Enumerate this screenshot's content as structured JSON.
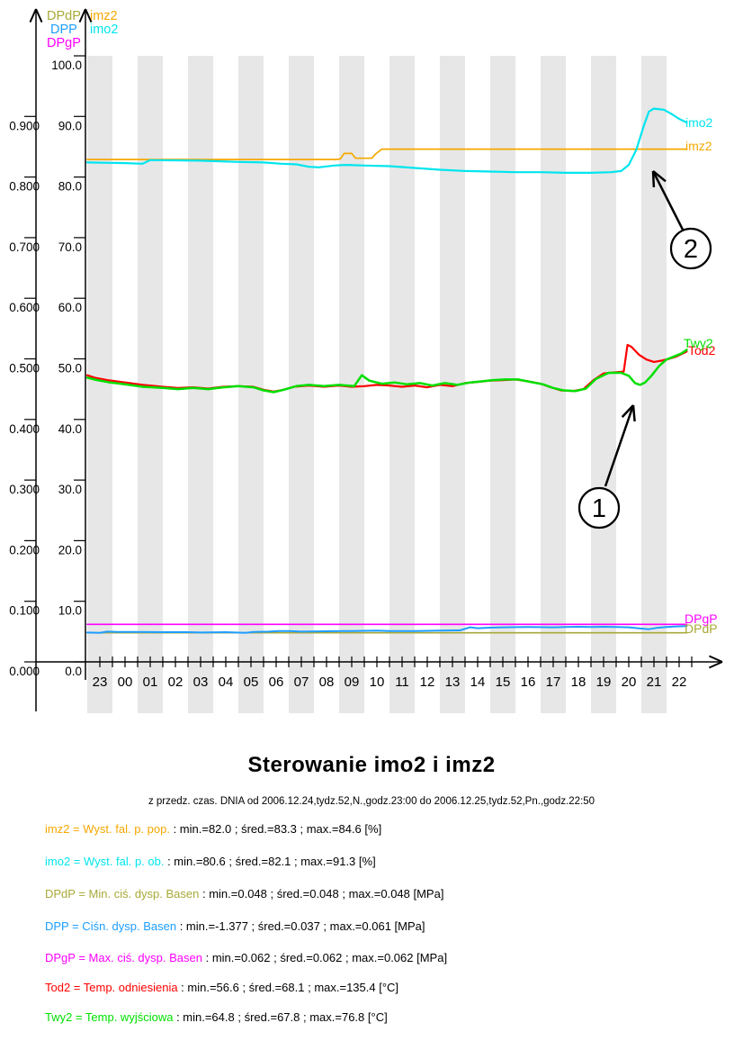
{
  "page": {
    "title": "Sterowanie imo2 i imz2",
    "subtitle": "z przedz. czas. DNIA od 2006.12.24,tydz.52,N.,godz.23:00 do 2006.12.25,tydz.52,Pn.,godz.22:50"
  },
  "chart_data": {
    "type": "line",
    "title": "Sterowanie imo2 i imz2",
    "subtitle": "z przedz. czas. DNIA od 2006.12.24,tydz.52,N.,godz.23:00 do 2006.12.25,tydz.52,Pn.,godz.22:50",
    "style": {
      "band_color": "#e7e7e7",
      "axis_color": "#000000",
      "background": "#ffffff"
    },
    "x_axis": {
      "unit": "hour",
      "labels": [
        "23",
        "00",
        "01",
        "02",
        "03",
        "04",
        "05",
        "06",
        "07",
        "08",
        "09",
        "10",
        "11",
        "12",
        "13",
        "14",
        "15",
        "16",
        "17",
        "18",
        "19",
        "20",
        "21",
        "22"
      ],
      "range_hours": [
        0,
        23.83
      ]
    },
    "y_axis_outer": {
      "range": [
        0,
        1
      ],
      "ticks": [
        [
          0,
          "0.000"
        ],
        [
          0.1,
          "0.100"
        ],
        [
          0.2,
          "0.200"
        ],
        [
          0.3,
          "0.300"
        ],
        [
          0.4,
          "0.400"
        ],
        [
          0.5,
          "0.500"
        ],
        [
          0.6,
          "0.600"
        ],
        [
          0.7,
          "0.700"
        ],
        [
          0.8,
          "0.800"
        ],
        [
          0.9,
          "0.900"
        ]
      ]
    },
    "y_axis_inner": {
      "range": [
        0,
        100
      ],
      "ticks": [
        [
          0,
          "0.0"
        ],
        [
          10,
          "10.0"
        ],
        [
          20,
          "20.0"
        ],
        [
          30,
          "30.0"
        ],
        [
          40,
          "40.0"
        ],
        [
          50,
          "50.0"
        ],
        [
          60,
          "60.0"
        ],
        [
          70,
          "70.0"
        ],
        [
          80,
          "80.0"
        ],
        [
          90,
          "90.0"
        ],
        [
          100,
          "100.0"
        ]
      ]
    },
    "axis_titles": {
      "left": [
        {
          "label": "DPdP",
          "color": "#a9a938"
        },
        {
          "label": "DPP",
          "color": "#1e9eff"
        },
        {
          "label": "DPgP",
          "color": "#ff00ff"
        }
      ],
      "right": [
        {
          "label": "imz2",
          "color": "#f5a800"
        },
        {
          "label": "imo2",
          "color": "#00e5ee"
        }
      ]
    },
    "series": [
      {
        "name": "DPgP",
        "color": "#ff00ff",
        "width": 1.6,
        "end_label": [
          761,
          692
        ],
        "points": [
          [
            0,
            6.2
          ],
          [
            23.8,
            6.2
          ]
        ]
      },
      {
        "name": "DPdP",
        "color": "#a9a938",
        "width": 1.6,
        "end_label": [
          761,
          703
        ],
        "points": [
          [
            0,
            4.8
          ],
          [
            23.8,
            4.8
          ]
        ]
      },
      {
        "name": "DPP",
        "color": "#1e9eff",
        "width": 2,
        "end_label": null,
        "points": [
          [
            0,
            4.85
          ],
          [
            0.5,
            4.8
          ],
          [
            0.8,
            5.0
          ],
          [
            1.2,
            4.95
          ],
          [
            2,
            4.95
          ],
          [
            3,
            4.9
          ],
          [
            4,
            4.9
          ],
          [
            4.5,
            4.85
          ],
          [
            5.5,
            4.9
          ],
          [
            6.3,
            4.8
          ],
          [
            6.6,
            4.95
          ],
          [
            7.2,
            5.0
          ],
          [
            7.6,
            5.1
          ],
          [
            8,
            5.1
          ],
          [
            8.5,
            5.0
          ],
          [
            9.5,
            5.05
          ],
          [
            10.5,
            5.1
          ],
          [
            11.5,
            5.15
          ],
          [
            12,
            5.1
          ],
          [
            13,
            5.1
          ],
          [
            14,
            5.15
          ],
          [
            14.8,
            5.2
          ],
          [
            15.2,
            5.7
          ],
          [
            15.5,
            5.55
          ],
          [
            16,
            5.65
          ],
          [
            16.5,
            5.7
          ],
          [
            17.5,
            5.75
          ],
          [
            18.5,
            5.7
          ],
          [
            19,
            5.75
          ],
          [
            19.5,
            5.8
          ],
          [
            20,
            5.75
          ],
          [
            20.5,
            5.8
          ],
          [
            21,
            5.75
          ],
          [
            21.5,
            5.7
          ],
          [
            22,
            5.5
          ],
          [
            22.3,
            5.4
          ],
          [
            22.6,
            5.6
          ],
          [
            23,
            5.75
          ],
          [
            23.4,
            5.85
          ],
          [
            23.8,
            5.9
          ]
        ]
      },
      {
        "name": "imz2",
        "color": "#f5a800",
        "width": 1.7,
        "end_label": [
          762,
          167
        ],
        "points": [
          [
            0,
            82.9
          ],
          [
            4,
            82.9
          ],
          [
            8,
            82.9
          ],
          [
            9.9,
            82.9
          ],
          [
            10.05,
            83.0
          ],
          [
            10.2,
            83.9
          ],
          [
            10.5,
            83.9
          ],
          [
            10.65,
            83.1
          ],
          [
            11.3,
            83.1
          ],
          [
            11.45,
            83.8
          ],
          [
            11.7,
            84.6
          ],
          [
            16,
            84.6
          ],
          [
            20,
            84.6
          ],
          [
            23.8,
            84.6
          ]
        ]
      },
      {
        "name": "imo2",
        "color": "#00e5ee",
        "width": 2.2,
        "end_label": [
          762,
          141
        ],
        "points": [
          [
            0,
            82.4
          ],
          [
            1.5,
            82.3
          ],
          [
            2.2,
            82.2
          ],
          [
            2.5,
            82.8
          ],
          [
            4.5,
            82.7
          ],
          [
            6,
            82.5
          ],
          [
            7,
            82.4
          ],
          [
            7.7,
            82.2
          ],
          [
            8.3,
            82.1
          ],
          [
            8.8,
            81.7
          ],
          [
            9.2,
            81.6
          ],
          [
            9.8,
            81.9
          ],
          [
            10.3,
            82.0
          ],
          [
            11,
            81.9
          ],
          [
            12,
            81.8
          ],
          [
            13,
            81.5
          ],
          [
            14,
            81.2
          ],
          [
            15,
            81.0
          ],
          [
            16,
            80.9
          ],
          [
            17,
            80.8
          ],
          [
            18,
            80.8
          ],
          [
            19,
            80.7
          ],
          [
            20,
            80.7
          ],
          [
            20.8,
            80.8
          ],
          [
            21.2,
            81.0
          ],
          [
            21.5,
            82.0
          ],
          [
            21.8,
            84.5
          ],
          [
            22.1,
            88.5
          ],
          [
            22.3,
            90.8
          ],
          [
            22.5,
            91.3
          ],
          [
            22.9,
            91.1
          ],
          [
            23.2,
            90.4
          ],
          [
            23.5,
            89.6
          ],
          [
            23.8,
            89.0
          ]
        ]
      },
      {
        "name": "Tod2",
        "color": "#ff0000",
        "width": 2.2,
        "end_label": [
          765,
          394
        ],
        "points": [
          [
            0,
            47.3
          ],
          [
            0.3,
            46.9
          ],
          [
            0.8,
            46.5
          ],
          [
            1.5,
            46.1
          ],
          [
            2.2,
            45.7
          ],
          [
            3,
            45.4
          ],
          [
            3.6,
            45.2
          ],
          [
            4.2,
            45.3
          ],
          [
            4.8,
            45.1
          ],
          [
            5.4,
            45.4
          ],
          [
            6,
            45.5
          ],
          [
            6.6,
            45.4
          ],
          [
            7,
            44.9
          ],
          [
            7.4,
            44.6
          ],
          [
            7.8,
            44.9
          ],
          [
            8.2,
            45.4
          ],
          [
            8.8,
            45.6
          ],
          [
            9.4,
            45.4
          ],
          [
            10,
            45.6
          ],
          [
            10.5,
            45.4
          ],
          [
            11,
            45.5
          ],
          [
            11.5,
            45.7
          ],
          [
            12,
            45.6
          ],
          [
            12.5,
            45.4
          ],
          [
            13,
            45.6
          ],
          [
            13.5,
            45.3
          ],
          [
            14,
            45.7
          ],
          [
            14.5,
            45.5
          ],
          [
            15,
            46.0
          ],
          [
            15.5,
            46.2
          ],
          [
            16,
            46.4
          ],
          [
            16.5,
            46.5
          ],
          [
            17,
            46.6
          ],
          [
            17.5,
            46.3
          ],
          [
            18,
            45.9
          ],
          [
            18.4,
            45.3
          ],
          [
            18.8,
            44.8
          ],
          [
            19.3,
            44.7
          ],
          [
            19.7,
            45.0
          ],
          [
            20.1,
            46.5
          ],
          [
            20.5,
            47.6
          ],
          [
            21,
            47.8
          ],
          [
            21.3,
            47.9
          ],
          [
            21.45,
            52.3
          ],
          [
            21.6,
            52.0
          ],
          [
            21.9,
            50.7
          ],
          [
            22.2,
            49.9
          ],
          [
            22.5,
            49.5
          ],
          [
            22.8,
            49.7
          ],
          [
            23.1,
            50.0
          ],
          [
            23.4,
            50.4
          ],
          [
            23.8,
            51.2
          ]
        ]
      },
      {
        "name": "Twy2",
        "color": "#00e000",
        "width": 2.5,
        "end_label": [
          760,
          386
        ],
        "points": [
          [
            0,
            46.9
          ],
          [
            0.4,
            46.5
          ],
          [
            0.9,
            46.1
          ],
          [
            1.5,
            45.8
          ],
          [
            2.2,
            45.4
          ],
          [
            3,
            45.2
          ],
          [
            3.6,
            45.0
          ],
          [
            4.2,
            45.2
          ],
          [
            4.8,
            45.0
          ],
          [
            5.4,
            45.3
          ],
          [
            6,
            45.5
          ],
          [
            6.6,
            45.3
          ],
          [
            7,
            44.8
          ],
          [
            7.4,
            44.5
          ],
          [
            7.8,
            44.9
          ],
          [
            8.3,
            45.5
          ],
          [
            8.8,
            45.7
          ],
          [
            9.4,
            45.5
          ],
          [
            10,
            45.7
          ],
          [
            10.6,
            45.5
          ],
          [
            10.9,
            47.3
          ],
          [
            11.2,
            46.4
          ],
          [
            11.7,
            45.9
          ],
          [
            12.2,
            46.1
          ],
          [
            12.7,
            45.8
          ],
          [
            13.2,
            46.0
          ],
          [
            13.7,
            45.6
          ],
          [
            14.2,
            46.0
          ],
          [
            14.7,
            45.7
          ],
          [
            15.2,
            46.1
          ],
          [
            15.7,
            46.3
          ],
          [
            16.1,
            46.5
          ],
          [
            16.6,
            46.6
          ],
          [
            17.1,
            46.6
          ],
          [
            17.6,
            46.2
          ],
          [
            18.1,
            45.8
          ],
          [
            18.5,
            45.2
          ],
          [
            18.9,
            44.8
          ],
          [
            19.4,
            44.7
          ],
          [
            19.8,
            45.1
          ],
          [
            20.2,
            46.7
          ],
          [
            20.7,
            47.7
          ],
          [
            21.2,
            47.7
          ],
          [
            21.5,
            47.2
          ],
          [
            21.75,
            46.0
          ],
          [
            21.95,
            45.7
          ],
          [
            22.15,
            46.1
          ],
          [
            22.4,
            47.2
          ],
          [
            22.7,
            48.8
          ],
          [
            23,
            49.9
          ],
          [
            23.3,
            50.4
          ],
          [
            23.6,
            50.9
          ],
          [
            23.8,
            51.5
          ]
        ]
      }
    ],
    "annotations": [
      {
        "label": "1",
        "circle": [
          666,
          564
        ],
        "radius": 22,
        "arrow": [
          [
            673,
            540
          ],
          [
            704,
            450
          ]
        ]
      },
      {
        "label": "2",
        "circle": [
          768,
          276
        ],
        "radius": 22,
        "arrow": [
          [
            759,
            255
          ],
          [
            726,
            190
          ]
        ]
      }
    ],
    "legend": [
      {
        "series": "imz2",
        "color": "#f5a800",
        "label": "imz2 = Wyst. fal. p. pop. ",
        "stats": ": min.=82.0 ; śred.=83.3 ; max.=84.6 [%]"
      },
      {
        "series": "imo2",
        "color": "#00e5ee",
        "label": "imo2 = Wyst. fal. p. ob. ",
        "stats": ": min.=80.6 ; śred.=82.1 ; max.=91.3 [%]"
      },
      {
        "series": "DPdP",
        "color": "#a9a938",
        "label": "DPdP = Min. ciś. dysp. Basen ",
        "stats": ": min.=0.048 ; śred.=0.048 ; max.=0.048 [MPa]"
      },
      {
        "series": "DPP",
        "color": "#1e9eff",
        "label": "DPP = Ciśn. dysp. Basen ",
        "stats": ": min.=-1.377 ; śred.=0.037 ; max.=0.061 [MPa]"
      },
      {
        "series": "DPgP",
        "color": "#ff00ff",
        "label": "DPgP = Max. ciś. dysp. Basen ",
        "stats": ": min.=0.062 ; śred.=0.062 ; max.=0.062 [MPa]"
      },
      {
        "series": "Tod2",
        "color": "#ff0000",
        "label": "Tod2 = Temp. odniesienia ",
        "stats": ": min.=56.6 ; śred.=68.1 ; max.=135.4 [°C]"
      },
      {
        "series": "Twy2",
        "color": "#00e000",
        "label": "Twy2 = Temp. wyjściowa ",
        "stats": ": min.=64.8 ; śred.=67.8 ; max.=76.8 [°C]"
      }
    ]
  }
}
